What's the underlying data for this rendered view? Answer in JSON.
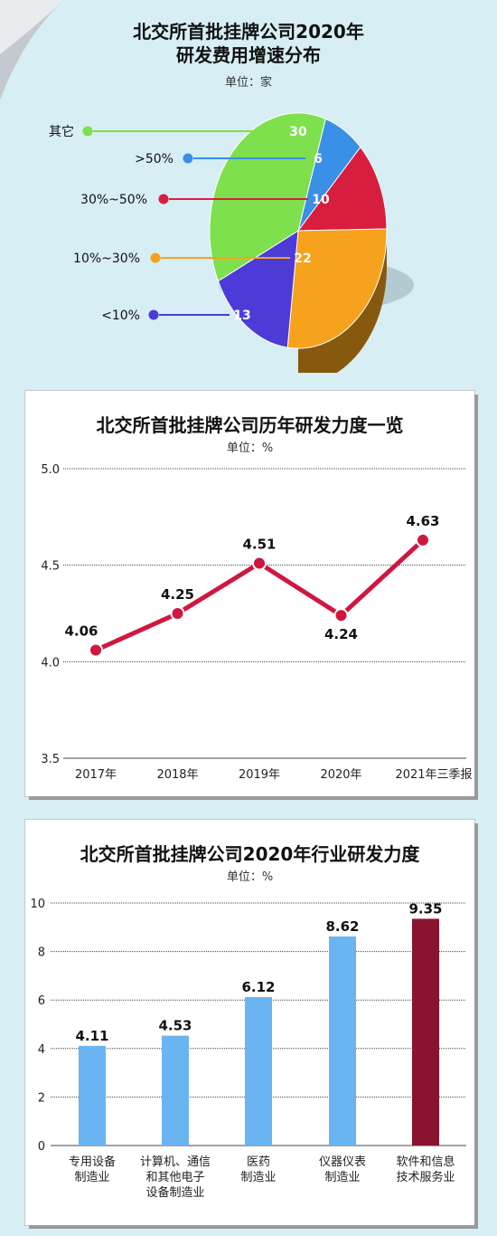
{
  "pie": {
    "title_line1": "北交所首批挂牌公司2020年",
    "title_line2": "研发费用增速分布",
    "unit": "单位：家",
    "chart_data": {
      "type": "pie",
      "slices": [
        {
          "label": "其它",
          "value": 30,
          "color": "#7ee04c"
        },
        {
          "label": ">50%",
          "value": 6,
          "color": "#3a8fe6"
        },
        {
          "label": "30%~50%",
          "value": 10,
          "color": "#d81e3e"
        },
        {
          "label": "10%~30%",
          "value": 22,
          "color": "#f6a21c"
        },
        {
          "label": "<10%",
          "value": 13,
          "color": "#4d3bd8"
        }
      ]
    }
  },
  "line": {
    "title": "北交所首批挂牌公司历年研发力度一览",
    "unit": "单位：%",
    "chart_data": {
      "type": "line",
      "categories": [
        "2017年",
        "2018年",
        "2019年",
        "2020年",
        "2021年三季报"
      ],
      "values": [
        4.06,
        4.25,
        4.51,
        4.24,
        4.63
      ],
      "value_labels": [
        "4.06",
        "4.25",
        "4.51",
        "4.24",
        "4.63"
      ],
      "yticks": [
        "3.5",
        "4.0",
        "4.5",
        "5.0"
      ],
      "ylim": [
        3.5,
        5.0
      ],
      "color": "#d0173f",
      "grid": true
    }
  },
  "bar": {
    "title": "北交所首批挂牌公司2020年行业研发力度",
    "unit": "单位：%",
    "chart_data": {
      "type": "bar",
      "categories": [
        [
          "专用设备",
          "制造业"
        ],
        [
          "计算机、通信",
          "和其他电子",
          "设备制造业"
        ],
        [
          "医药",
          "制造业"
        ],
        [
          "仪器仪表",
          "制造业"
        ],
        [
          "软件和信息",
          "技术服务业"
        ]
      ],
      "values": [
        4.11,
        4.53,
        6.12,
        8.62,
        9.35
      ],
      "value_labels": [
        "4.11",
        "4.53",
        "6.12",
        "8.62",
        "9.35"
      ],
      "yticks": [
        "0",
        "2",
        "4",
        "6",
        "8",
        "10"
      ],
      "ylim": [
        0,
        10
      ],
      "colors": [
        "#6ab4f2",
        "#6ab4f2",
        "#6ab4f2",
        "#6ab4f2",
        "#8a1430"
      ],
      "grid": true
    }
  }
}
